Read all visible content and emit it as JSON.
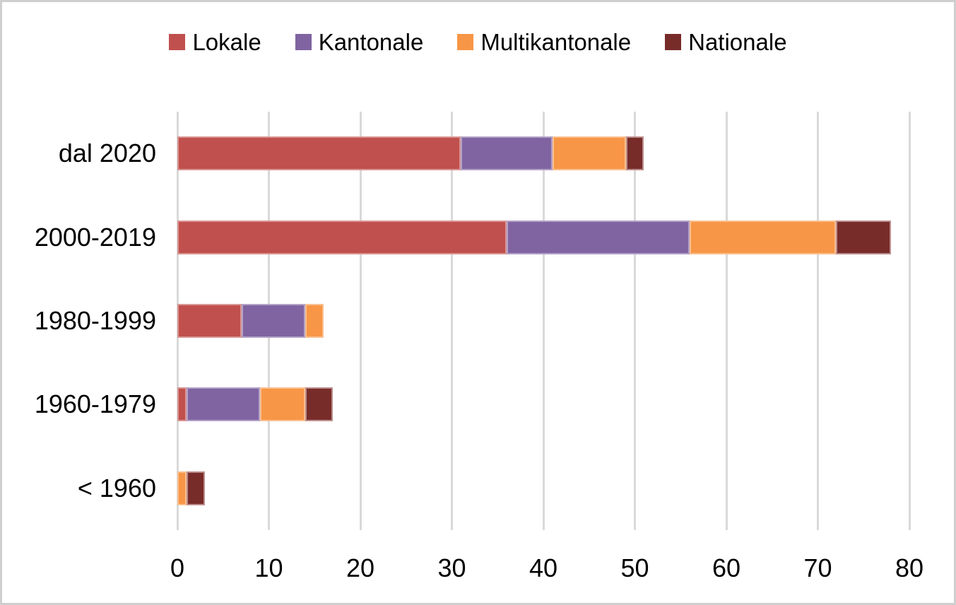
{
  "chart_data": {
    "type": "bar",
    "orientation": "horizontal",
    "stacked": true,
    "title": "",
    "xlabel": "",
    "ylabel": "",
    "categories": [
      "dal 2020",
      "2000-2019",
      "1980-1999",
      "1960-1979",
      "< 1960"
    ],
    "series": [
      {
        "name": "Lokale",
        "color": "#C0504D",
        "border_color": "#D99694",
        "values": [
          31,
          36,
          7,
          1,
          0
        ]
      },
      {
        "name": "Kantonale",
        "color": "#8064A2",
        "border_color": "#B3A2C7",
        "values": [
          10,
          20,
          7,
          8,
          0
        ]
      },
      {
        "name": "Multikantonale",
        "color": "#F79646",
        "border_color": "#FAC090",
        "values": [
          8,
          16,
          2,
          5,
          1
        ]
      },
      {
        "name": "Nationale",
        "color": "#772C2A",
        "border_color": "#BC8E8C",
        "values": [
          2,
          6,
          0,
          3,
          2
        ]
      }
    ],
    "category_totals": [
      51,
      78,
      16,
      17,
      3
    ],
    "xlim": [
      0,
      80
    ],
    "x_ticks": [
      0,
      10,
      20,
      30,
      40,
      50,
      60,
      70,
      80
    ],
    "grid": true,
    "gridline_color": "#D9D9D9",
    "legend_position": "top",
    "background_color": "#FFFFFF",
    "frame_border_color": "#CFCFCF",
    "text_color": "#000000"
  }
}
